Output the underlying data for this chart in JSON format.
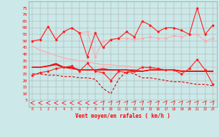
{
  "xlabel": "Vent moyen/en rafales ( km/h )",
  "bg_color": "#cce8e8",
  "grid_color": "#aaaaaa",
  "x": [
    0,
    1,
    2,
    3,
    4,
    5,
    6,
    7,
    8,
    9,
    10,
    11,
    12,
    13,
    14,
    15,
    16,
    17,
    18,
    19,
    20,
    21,
    22,
    23
  ],
  "line_pink_trend": [
    46,
    43,
    41,
    39,
    37,
    36,
    35,
    34,
    33,
    32,
    32,
    31,
    31,
    30,
    30,
    29,
    29,
    28,
    28,
    28,
    27,
    27,
    27,
    26
  ],
  "line_pink_rafales": [
    50,
    51,
    61,
    51,
    57,
    60,
    56,
    57,
    38,
    50,
    51,
    52,
    52,
    51,
    52,
    53,
    52,
    52,
    54,
    53,
    55,
    55,
    50,
    52
  ],
  "line_red_rafales": [
    50,
    51,
    61,
    51,
    57,
    60,
    56,
    38,
    56,
    45,
    51,
    52,
    57,
    53,
    65,
    62,
    57,
    60,
    60,
    58,
    55,
    75,
    55,
    62
  ],
  "line_red_moyen": [
    24,
    26,
    27,
    29,
    30,
    31,
    27,
    33,
    27,
    26,
    20,
    27,
    26,
    27,
    30,
    30,
    29,
    28,
    28,
    25,
    29,
    36,
    28,
    17
  ],
  "line_flat1": [
    30,
    30,
    31,
    32,
    30,
    30,
    28,
    28,
    28,
    28,
    28,
    28,
    28,
    27,
    27,
    28,
    28,
    28,
    28,
    27,
    27,
    27,
    27,
    27
  ],
  "line_flat2": [
    30,
    30,
    31,
    33,
    30,
    29,
    28,
    28,
    28,
    29,
    28,
    28,
    28,
    28,
    27,
    28,
    28,
    28,
    28,
    27,
    27,
    27,
    27,
    27
  ],
  "line_dashed": [
    25,
    25,
    24,
    24,
    23,
    23,
    22,
    22,
    21,
    14,
    10,
    21,
    27,
    25,
    22,
    22,
    21,
    20,
    19,
    19,
    18,
    17,
    17,
    16
  ],
  "ylim": [
    0,
    80
  ],
  "yticks": [
    5,
    10,
    15,
    20,
    25,
    30,
    35,
    40,
    45,
    50,
    55,
    60,
    65,
    70,
    75
  ]
}
